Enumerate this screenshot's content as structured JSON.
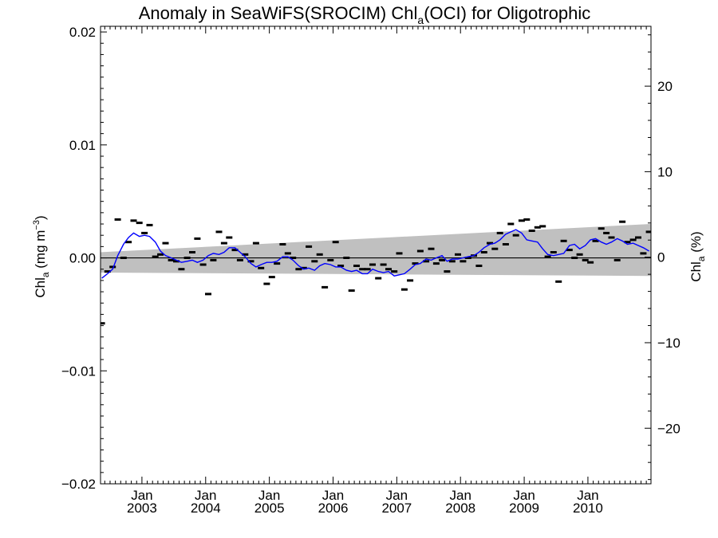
{
  "chart_data": {
    "type": "line",
    "title_main": "Anomaly in SeaWiFS(SROCIM) Chl",
    "title_sub": "a",
    "title_rest": "(OCI) for Oligotrophic",
    "ylabel_left_main": "Chl",
    "ylabel_left_sub": "a",
    "ylabel_left_unit": " (mg m",
    "ylabel_left_sup": "−3",
    "ylabel_left_close": ")",
    "ylabel_right_main": "Chl",
    "ylabel_right_sub": "a",
    "ylabel_right_unit": " (%)",
    "ylim_left": [
      -0.02,
      0.0205
    ],
    "ylim_right": [
      -26.5,
      27.0
    ],
    "xlim": [
      2002.35,
      2010.99
    ],
    "yticks_left": [
      {
        "v": 0.02,
        "label": "0.02"
      },
      {
        "v": 0.01,
        "label": "0.01"
      },
      {
        "v": 0.0,
        "label": "0.00"
      },
      {
        "v": -0.01,
        "label": "−0.01"
      },
      {
        "v": -0.02,
        "label": "−0.02"
      }
    ],
    "yticks_right": [
      {
        "v": 20,
        "label": "20"
      },
      {
        "v": 10,
        "label": "10"
      },
      {
        "v": 0,
        "label": "0"
      },
      {
        "v": -10,
        "label": "−10"
      },
      {
        "v": -20,
        "label": "−20"
      }
    ],
    "xticks": [
      {
        "x": 2003.0,
        "month": "Jan",
        "year": "2003"
      },
      {
        "x": 2004.0,
        "month": "Jan",
        "year": "2004"
      },
      {
        "x": 2005.0,
        "month": "Jan",
        "year": "2005"
      },
      {
        "x": 2006.0,
        "month": "Jan",
        "year": "2006"
      },
      {
        "x": 2007.0,
        "month": "Jan",
        "year": "2007"
      },
      {
        "x": 2008.0,
        "month": "Jan",
        "year": "2008"
      },
      {
        "x": 2009.0,
        "month": "Jan",
        "year": "2009"
      },
      {
        "x": 2010.0,
        "month": "Jan",
        "year": "2010"
      }
    ],
    "zero_line": 0.0,
    "band": {
      "x": [
        2002.35,
        2010.99
      ],
      "lower": [
        -0.0013,
        -0.0016
      ],
      "upper": [
        0.0005,
        0.003
      ],
      "color": "#c0c0c0"
    },
    "series": [
      {
        "style": "markers",
        "color": "#000000",
        "x": [
          2002.37,
          2002.46,
          2002.54,
          2002.62,
          2002.71,
          2002.79,
          2002.87,
          2002.96,
          2003.04,
          2003.12,
          2003.21,
          2003.29,
          2003.37,
          2003.46,
          2003.54,
          2003.62,
          2003.71,
          2003.79,
          2003.87,
          2003.96,
          2004.04,
          2004.12,
          2004.21,
          2004.29,
          2004.37,
          2004.46,
          2004.54,
          2004.62,
          2004.71,
          2004.79,
          2004.87,
          2004.96,
          2005.04,
          2005.12,
          2005.21,
          2005.29,
          2005.37,
          2005.46,
          2005.54,
          2005.62,
          2005.71,
          2005.79,
          2005.87,
          2005.96,
          2006.04,
          2006.12,
          2006.21,
          2006.29,
          2006.37,
          2006.46,
          2006.54,
          2006.62,
          2006.71,
          2006.79,
          2006.87,
          2006.96,
          2007.04,
          2007.12,
          2007.21,
          2007.29,
          2007.37,
          2007.46,
          2007.54,
          2007.62,
          2007.71,
          2007.79,
          2007.87,
          2007.96,
          2008.04,
          2008.12,
          2008.21,
          2008.29,
          2008.37,
          2008.46,
          2008.54,
          2008.62,
          2008.71,
          2008.79,
          2008.87,
          2008.96,
          2009.04,
          2009.12,
          2009.21,
          2009.29,
          2009.37,
          2009.46,
          2009.54,
          2009.62,
          2009.71,
          2009.79,
          2009.87,
          2009.96,
          2010.04,
          2010.12,
          2010.21,
          2010.29,
          2010.37,
          2010.46,
          2010.54,
          2010.62,
          2010.71,
          2010.79,
          2010.87,
          2010.96
        ],
        "y": [
          -0.0058,
          -0.0012,
          -0.0008,
          0.0034,
          0.0,
          0.0014,
          0.0033,
          0.0031,
          0.0022,
          0.0029,
          0.0001,
          0.0003,
          0.0013,
          -0.0002,
          -0.0003,
          -0.001,
          0.0,
          0.0005,
          0.0017,
          -0.0006,
          -0.0032,
          -0.0002,
          0.0023,
          0.0013,
          0.0018,
          0.0007,
          -0.0002,
          0.0003,
          -0.0003,
          0.0013,
          -0.0009,
          -0.0023,
          -0.0017,
          -0.0005,
          0.0012,
          0.0004,
          0.0,
          -0.001,
          -0.0009,
          0.001,
          -0.0003,
          0.0003,
          -0.0026,
          -0.0002,
          0.0014,
          -0.0007,
          0.0,
          -0.0029,
          -0.0007,
          -0.001,
          -0.001,
          -0.0006,
          -0.0018,
          -0.0006,
          -0.001,
          -0.0012,
          0.0004,
          -0.0028,
          -0.002,
          -0.0005,
          0.0006,
          -0.0003,
          0.0008,
          -0.0005,
          -0.0002,
          -0.0012,
          -0.0003,
          0.0003,
          -0.0003,
          0.0,
          0.0002,
          -0.0007,
          0.0005,
          0.0013,
          0.0008,
          0.0022,
          0.0012,
          0.003,
          0.002,
          0.0033,
          0.0034,
          0.0024,
          0.0027,
          0.0028,
          0.0001,
          0.0005,
          -0.0021,
          0.0015,
          0.0007,
          0.0,
          0.0003,
          -0.0002,
          -0.0004,
          0.0015,
          0.0026,
          0.0022,
          0.0018,
          -0.0002,
          0.0032,
          0.0014,
          0.0016,
          0.0018,
          0.0004,
          0.0023
        ]
      },
      {
        "style": "line",
        "color": "#0000ff",
        "x": [
          2002.37,
          2002.46,
          2002.54,
          2002.62,
          2002.71,
          2002.79,
          2002.87,
          2002.96,
          2003.04,
          2003.12,
          2003.21,
          2003.29,
          2003.37,
          2003.46,
          2003.54,
          2003.62,
          2003.71,
          2003.79,
          2003.87,
          2003.96,
          2004.04,
          2004.12,
          2004.21,
          2004.29,
          2004.37,
          2004.46,
          2004.54,
          2004.62,
          2004.71,
          2004.79,
          2004.87,
          2004.96,
          2005.04,
          2005.12,
          2005.21,
          2005.29,
          2005.37,
          2005.46,
          2005.54,
          2005.62,
          2005.71,
          2005.79,
          2005.87,
          2005.96,
          2006.04,
          2006.12,
          2006.21,
          2006.29,
          2006.37,
          2006.46,
          2006.54,
          2006.62,
          2006.71,
          2006.79,
          2006.87,
          2006.96,
          2007.04,
          2007.12,
          2007.21,
          2007.29,
          2007.37,
          2007.46,
          2007.54,
          2007.62,
          2007.71,
          2007.79,
          2007.87,
          2007.96,
          2008.04,
          2008.12,
          2008.21,
          2008.29,
          2008.37,
          2008.46,
          2008.54,
          2008.62,
          2008.71,
          2008.79,
          2008.87,
          2008.96,
          2009.04,
          2009.12,
          2009.21,
          2009.29,
          2009.37,
          2009.46,
          2009.54,
          2009.62,
          2009.71,
          2009.79,
          2009.87,
          2009.96,
          2010.04,
          2010.12,
          2010.21,
          2010.29,
          2010.37,
          2010.46,
          2010.54,
          2010.62,
          2010.71,
          2010.79,
          2010.87,
          2010.96
        ],
        "y": [
          -0.0018,
          -0.0014,
          -0.001,
          0.0002,
          0.0012,
          0.0018,
          0.0022,
          0.0019,
          0.002,
          0.0019,
          0.0014,
          0.0006,
          0.0002,
          0.0,
          -0.0002,
          -0.0004,
          -0.0003,
          -0.0002,
          -0.0004,
          -0.0002,
          0.0002,
          0.0004,
          0.0003,
          0.0005,
          0.0009,
          0.0009,
          0.0005,
          0.0001,
          -0.0005,
          -0.0008,
          -0.0006,
          -0.0004,
          -0.0004,
          -0.0003,
          0.0001,
          0.0001,
          -0.0002,
          -0.0007,
          -0.001,
          -0.0009,
          -0.0011,
          -0.0007,
          -0.0005,
          -0.0006,
          -0.0008,
          -0.0008,
          -0.0011,
          -0.0012,
          -0.0011,
          -0.0014,
          -0.0014,
          -0.001,
          -0.0012,
          -0.0013,
          -0.0012,
          -0.0016,
          -0.0015,
          -0.0014,
          -0.001,
          -0.0006,
          -0.0005,
          -0.0001,
          -0.0002,
          0.0,
          0.0002,
          -0.0003,
          -0.0001,
          -0.0001,
          0.0,
          0.0001,
          0.0002,
          0.0005,
          0.0009,
          0.0012,
          0.0013,
          0.0016,
          0.0021,
          0.0023,
          0.0025,
          0.0022,
          0.0016,
          0.0015,
          0.0014,
          0.0008,
          0.0003,
          0.0002,
          0.0003,
          0.0004,
          0.0011,
          0.0012,
          0.0008,
          0.0011,
          0.0016,
          0.0017,
          0.0014,
          0.0012,
          0.0014,
          0.0017,
          0.0015,
          0.0012,
          0.0013,
          0.0011,
          0.0009,
          0.0006
        ]
      }
    ],
    "grid": false,
    "legend": "none"
  }
}
